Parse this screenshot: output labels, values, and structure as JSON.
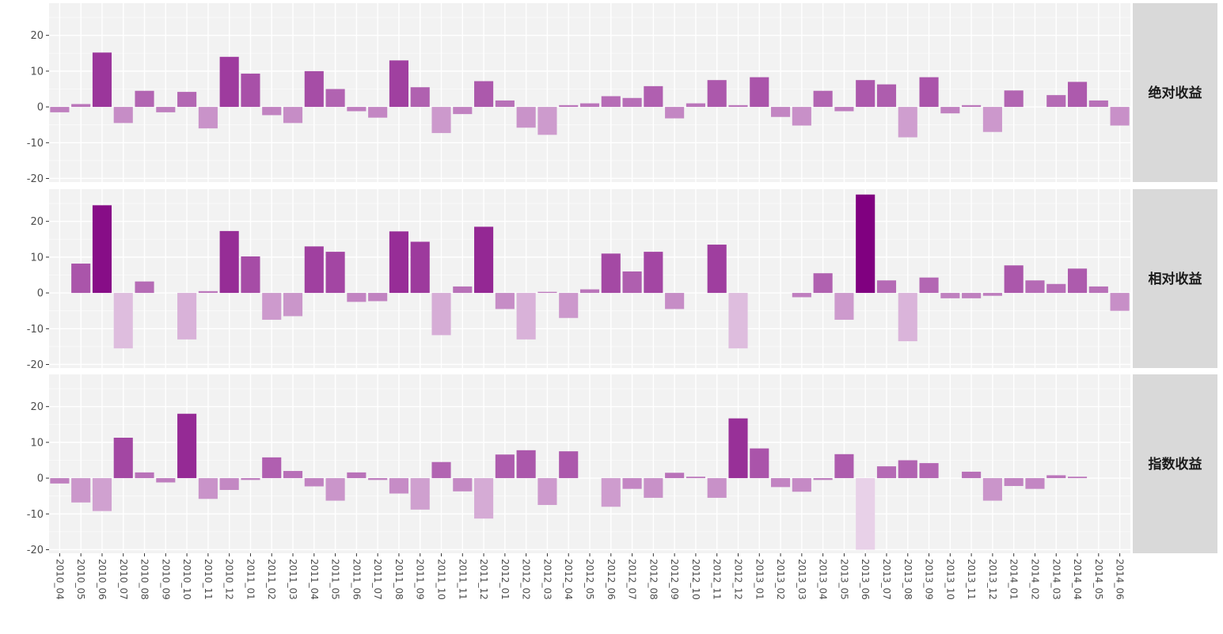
{
  "chart_data": {
    "type": "bar",
    "facets": [
      "绝对收益",
      "相对收益",
      "指数收益"
    ],
    "categories": [
      "2010_04",
      "2010_05",
      "2010_06",
      "2010_07",
      "2010_08",
      "2010_09",
      "2010_10",
      "2010_11",
      "2010_12",
      "2011_01",
      "2011_02",
      "2011_03",
      "2011_04",
      "2011_05",
      "2011_06",
      "2011_07",
      "2011_08",
      "2011_09",
      "2011_10",
      "2011_11",
      "2011_12",
      "2012_01",
      "2012_02",
      "2012_03",
      "2012_04",
      "2012_05",
      "2012_06",
      "2012_07",
      "2012_08",
      "2012_09",
      "2012_10",
      "2012_11",
      "2012_12",
      "2013_01",
      "2013_02",
      "2013_03",
      "2013_04",
      "2013_05",
      "2013_06",
      "2013_07",
      "2013_08",
      "2013_09",
      "2013_10",
      "2013_11",
      "2013_12",
      "2014_01",
      "2014_02",
      "2014_03",
      "2014_04",
      "2014_05",
      "2014_06"
    ],
    "series": [
      {
        "name": "绝对收益",
        "values": [
          -1.5,
          0.8,
          15.2,
          -4.5,
          4.5,
          -1.5,
          4.2,
          -6.0,
          14.0,
          9.3,
          -2.3,
          -4.5,
          10.0,
          5.0,
          -1.2,
          -3.0,
          13.0,
          5.5,
          -7.3,
          -2.0,
          7.2,
          1.8,
          -5.8,
          -7.8,
          0.5,
          1.0,
          3.0,
          2.5,
          5.8,
          -3.2,
          1.0,
          7.5,
          0.5,
          8.3,
          -2.8,
          -5.2,
          4.5,
          -1.2,
          7.5,
          6.3,
          -8.5,
          8.3,
          -1.8,
          0.5,
          -7.0,
          4.6,
          0,
          3.3,
          7.0,
          1.8,
          -5.2
        ]
      },
      {
        "name": "相对收益",
        "values": [
          0,
          8.2,
          24.5,
          -15.5,
          3.2,
          0,
          -13.0,
          0.5,
          17.3,
          10.2,
          -7.5,
          -6.5,
          13.0,
          11.5,
          -2.5,
          -2.3,
          17.2,
          14.3,
          -11.8,
          1.8,
          18.5,
          -4.5,
          -13.0,
          0.3,
          -7.0,
          1.0,
          11.0,
          6.0,
          11.5,
          -4.5,
          0,
          13.5,
          -15.5,
          0,
          0,
          -1.2,
          5.5,
          -7.5,
          27.5,
          3.5,
          -13.5,
          4.3,
          -1.5,
          -1.5,
          -0.8,
          7.7,
          3.5,
          2.5,
          6.8,
          1.8,
          -5.0
        ]
      },
      {
        "name": "指数收益",
        "values": [
          -1.5,
          -6.8,
          -9.2,
          11.3,
          1.6,
          -1.2,
          18.0,
          -5.8,
          -3.3,
          -0.5,
          5.8,
          2.0,
          -2.3,
          -6.3,
          1.6,
          -0.5,
          -4.3,
          -8.8,
          4.5,
          -3.7,
          -11.3,
          6.6,
          7.8,
          -7.5,
          7.5,
          0,
          -8.0,
          -3.0,
          -5.5,
          1.5,
          0.4,
          -5.5,
          16.7,
          8.3,
          -2.5,
          -3.8,
          -0.5,
          6.7,
          -20.0,
          3.3,
          5.0,
          4.2,
          0,
          1.8,
          -6.3,
          -2.2,
          -3.0,
          0.8,
          0.4,
          0,
          0
        ]
      }
    ],
    "yticks": [
      -20,
      -10,
      0,
      10,
      20
    ],
    "ylim": [
      -21,
      29
    ],
    "grid": true,
    "fill_color_scale": [
      "#e8d1e8",
      "#800080"
    ],
    "panel_background": "#f2f2f2",
    "strip_background": "#d9d9d9",
    "xlabel": "",
    "ylabel": ""
  }
}
